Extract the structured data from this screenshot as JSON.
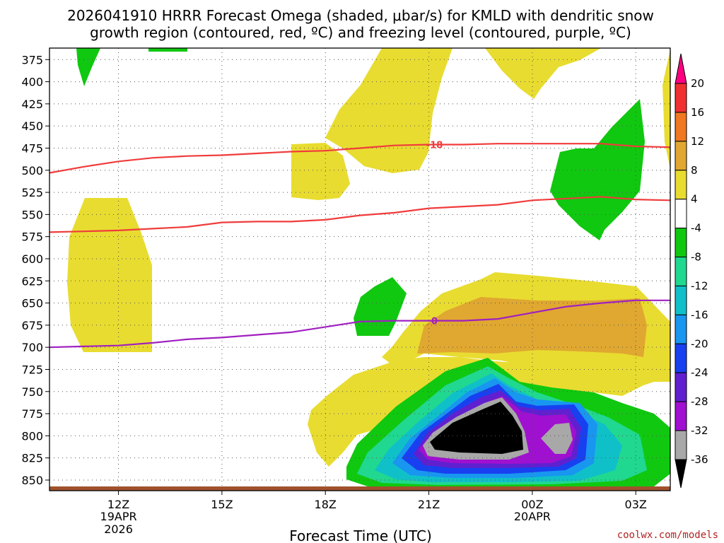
{
  "chart_data": {
    "type": "contour",
    "title_line1": "2026041910 HRRR Forecast Omega (shaded, μbar/s) for KMLD with dendritic snow",
    "title_line2": "growth region (contoured, red, ºC) and freezing level (contoured, purple, ºC)",
    "xlabel": "Forecast Time (UTC)",
    "x_ticks": [
      {
        "h": 12,
        "label": "12Z",
        "sub1": "19APR",
        "sub2": "2026"
      },
      {
        "h": 15,
        "label": "15Z",
        "sub1": "",
        "sub2": ""
      },
      {
        "h": 18,
        "label": "18Z",
        "sub1": "",
        "sub2": ""
      },
      {
        "h": 21,
        "label": "21Z",
        "sub1": "",
        "sub2": ""
      },
      {
        "h": 24,
        "label": "00Z",
        "sub1": "20APR",
        "sub2": ""
      },
      {
        "h": 27,
        "label": "03Z",
        "sub1": "",
        "sub2": ""
      }
    ],
    "x_range_hours": [
      10,
      28
    ],
    "y_ticks": [
      375,
      400,
      425,
      450,
      475,
      500,
      525,
      550,
      575,
      600,
      625,
      650,
      675,
      700,
      725,
      750,
      775,
      800,
      825,
      850
    ],
    "y_range_hpa": [
      362,
      862
    ],
    "grid": true,
    "colorbar": {
      "position": "right",
      "labels": [
        "20",
        "16",
        "12",
        "8",
        "4",
        "-4",
        "-8",
        "-12",
        "-16",
        "-20",
        "-24",
        "-28",
        "-32",
        "-36"
      ],
      "colors": [
        "#ff0080",
        "#f03030",
        "#f07820",
        "#e0a830",
        "#e8dc30",
        "#ffffff",
        "#10c810",
        "#20d890",
        "#10c0c8",
        "#1896f0",
        "#1840f0",
        "#6020d0",
        "#a010d0",
        "#a8a8a8",
        "#000000"
      ]
    },
    "series": [
      {
        "name": "-18",
        "color": "#f03c3c",
        "points": [
          [
            10,
            503
          ],
          [
            11,
            496
          ],
          [
            12,
            490
          ],
          [
            13,
            486
          ],
          [
            14,
            484
          ],
          [
            15,
            483
          ],
          [
            16,
            481
          ],
          [
            17,
            479
          ],
          [
            18,
            478
          ],
          [
            19,
            475
          ],
          [
            20,
            472
          ],
          [
            21,
            471
          ],
          [
            22,
            471
          ],
          [
            23,
            470
          ],
          [
            24,
            470
          ],
          [
            25,
            470
          ],
          [
            26,
            470
          ],
          [
            27,
            473
          ],
          [
            28,
            474
          ]
        ]
      },
      {
        "name": "",
        "color": "#f03c3c",
        "points": [
          [
            10,
            570
          ],
          [
            11,
            569
          ],
          [
            12,
            568
          ],
          [
            13,
            566
          ],
          [
            14,
            564
          ],
          [
            15,
            559
          ],
          [
            16,
            558
          ],
          [
            17,
            558
          ],
          [
            18,
            556
          ],
          [
            19,
            551
          ],
          [
            20,
            548
          ],
          [
            21,
            543
          ],
          [
            22,
            541
          ],
          [
            23,
            539
          ],
          [
            24,
            534
          ],
          [
            25,
            532
          ],
          [
            26,
            530
          ],
          [
            27,
            533
          ],
          [
            28,
            534
          ]
        ]
      },
      {
        "name": "0",
        "color": "#a020c0",
        "points": [
          [
            10,
            700
          ],
          [
            11,
            699
          ],
          [
            12,
            698
          ],
          [
            13,
            695
          ],
          [
            14,
            691
          ],
          [
            15,
            689
          ],
          [
            16,
            686
          ],
          [
            17,
            683
          ],
          [
            18,
            677
          ],
          [
            19,
            671
          ],
          [
            20,
            670
          ],
          [
            21,
            670
          ],
          [
            22,
            670
          ],
          [
            23,
            668
          ],
          [
            24,
            661
          ],
          [
            25,
            654
          ],
          [
            26,
            650
          ],
          [
            27,
            647
          ],
          [
            28,
            647
          ]
        ]
      }
    ],
    "ground_level_hpa": 858
  },
  "credit": "coolwx.com/models"
}
